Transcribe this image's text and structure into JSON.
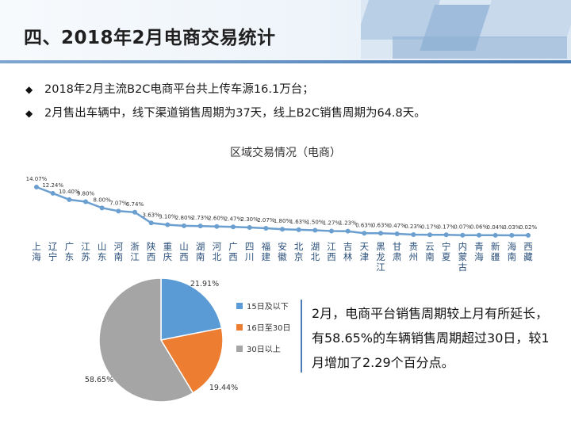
{
  "header": {
    "title": "四、2018年2月电商交易统计"
  },
  "bullets": [
    "2018年2月主流B2C电商平台共上传车源16.1万台；",
    "2月售出车辆中，线下渠道销售周期为37天，线上B2C销售周期为64.8天。"
  ],
  "bullet_marker": "◆",
  "colors": {
    "line": "#6a9fd0",
    "pie_blue": "#5b9bd5",
    "pie_orange": "#ed7d31",
    "pie_gray": "#a5a5a5",
    "accent": "#4a7db5"
  },
  "chart_data": [
    {
      "type": "line",
      "title": "区域交易情况（电商）",
      "categories": [
        "上海",
        "辽宁",
        "广东",
        "江苏",
        "山东",
        "河南",
        "浙江",
        "陕西",
        "重庆",
        "山西",
        "湖南",
        "河北",
        "广西",
        "四川",
        "福建",
        "安徽",
        "北京",
        "湖北",
        "江西",
        "吉林",
        "天津",
        "黑龙江",
        "甘肃",
        "贵州",
        "云南",
        "宁夏",
        "内蒙古",
        "青海",
        "新疆",
        "海南",
        "西藏"
      ],
      "values": [
        14.07,
        12.24,
        10.4,
        9.8,
        8.0,
        7.07,
        6.74,
        3.63,
        3.1,
        2.8,
        2.73,
        2.6,
        2.47,
        2.3,
        2.07,
        1.8,
        1.63,
        1.5,
        1.27,
        1.23,
        0.63,
        0.63,
        0.47,
        0.23,
        0.17,
        0.17,
        0.07,
        0.06,
        0.04,
        0.03,
        0.02
      ],
      "labels": [
        "14.07%",
        "12.24%",
        "10.40%",
        "9.80%",
        "8.00%",
        "7.07%",
        "6.74%",
        "3.63%",
        "3.10%",
        "2.80%",
        "2.73%",
        "2.60%",
        "2.47%",
        "2.30%",
        "2.07%",
        "1.80%",
        "1.63%",
        "1.50%",
        "1.27%",
        "1.23%",
        "0.63%",
        "0.63%",
        "0.47%",
        "0.23%",
        "0.17%",
        "0.17%",
        "0.07%",
        "0.06%",
        "0.04%",
        "0.03%",
        "0.02%"
      ]
    },
    {
      "type": "pie",
      "slices": [
        {
          "name": "15日及以下",
          "value": 21.91,
          "label": "21.91%"
        },
        {
          "name": "16日至30日",
          "value": 19.44,
          "label": "19.44%"
        },
        {
          "name": "30日以上",
          "value": 58.65,
          "label": "58.65%"
        }
      ]
    }
  ],
  "pie_note": "2月，电商平台销售周期较上月有所延长，有58.65%的车辆销售周期超过30日，较1月增加了2.29个百分点。"
}
